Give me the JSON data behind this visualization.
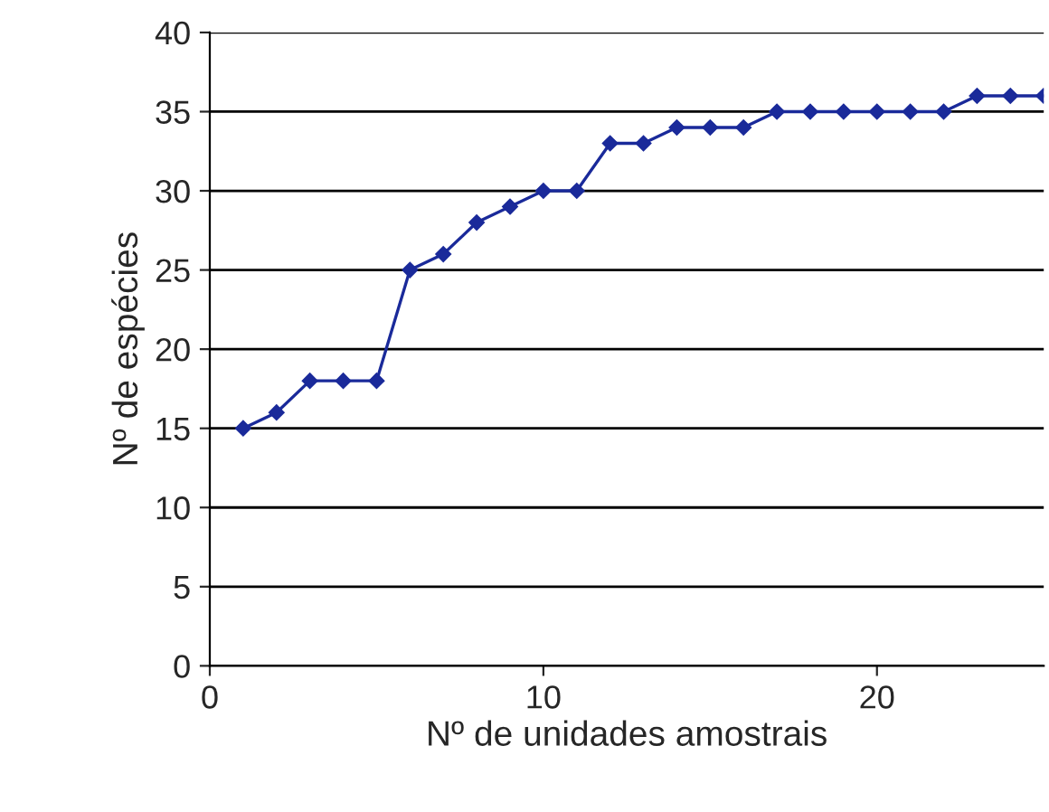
{
  "chart_data": {
    "type": "line",
    "xlabel": "Nº de unidades amostrais",
    "ylabel": "Nº de espécies",
    "x": [
      1,
      2,
      3,
      4,
      5,
      6,
      7,
      8,
      9,
      10,
      11,
      12,
      13,
      14,
      15,
      16,
      17,
      18,
      19,
      20,
      21,
      22,
      23,
      24,
      25
    ],
    "series": [
      {
        "color": "#1a2a9a",
        "values": [
          15,
          16,
          18,
          18,
          18,
          25,
          26,
          28,
          29,
          30,
          30,
          33,
          33,
          34,
          34,
          34,
          35,
          35,
          35,
          35,
          35,
          35,
          36,
          36,
          36
        ]
      }
    ],
    "xlim": [
      0,
      25
    ],
    "xticks": [
      0,
      10,
      20
    ],
    "ylim": [
      0,
      40
    ],
    "yticks": [
      0,
      5,
      10,
      15,
      20,
      25,
      30,
      35,
      40
    ],
    "grid": "y",
    "marker": "diamond",
    "line_style": "solid",
    "legend": false
  }
}
